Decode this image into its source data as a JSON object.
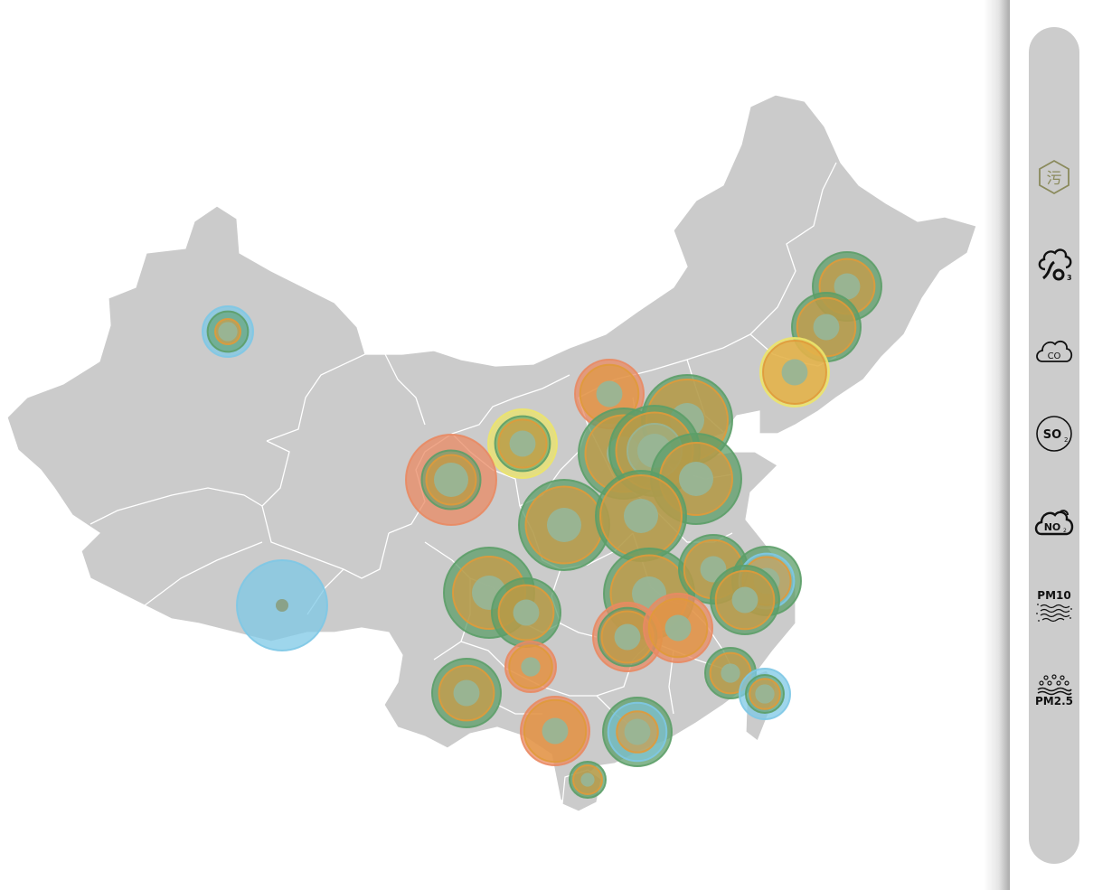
{
  "map": {
    "region": "China",
    "colors": {
      "land": "#cbcbcb",
      "border": "#ffffff",
      "orange": "#e09a3a",
      "green": "#5c9e68",
      "red": "#e98a63",
      "yellow": "#ece46a",
      "blue": "#7ec8e6",
      "center": "#98b596"
    },
    "stations": [
      {
        "id": "urumqi",
        "layers": [
          [
            "blue",
            1
          ],
          [
            "green",
            0.8
          ],
          [
            "orange",
            0.5
          ]
        ],
        "size": "small"
      },
      {
        "id": "lhasa",
        "layers": [
          [
            "blue",
            1
          ]
        ],
        "size": "large"
      },
      {
        "id": "harbin",
        "layers": [
          [
            "green",
            1
          ],
          [
            "orange",
            0.8
          ]
        ],
        "size": "medium"
      },
      {
        "id": "changchun",
        "layers": [
          [
            "green",
            1
          ],
          [
            "orange",
            0.85
          ]
        ],
        "size": "medium"
      },
      {
        "id": "shenyang",
        "layers": [
          [
            "yellow",
            1
          ],
          [
            "orange",
            0.92
          ]
        ],
        "size": "medium"
      },
      {
        "id": "hohhot",
        "layers": [
          [
            "red",
            1
          ],
          [
            "orange",
            0.85
          ]
        ],
        "size": "medium"
      },
      {
        "id": "yinchuan",
        "layers": [
          [
            "yellow",
            1
          ],
          [
            "green",
            0.8
          ],
          [
            "orange",
            0.7
          ]
        ],
        "size": "medium"
      },
      {
        "id": "lanzhou",
        "layers": [
          [
            "red",
            1
          ],
          [
            "green",
            0.65
          ],
          [
            "orange",
            0.55
          ]
        ],
        "size": "large"
      },
      {
        "id": "taiyuan",
        "layers": [
          [
            "green",
            1
          ],
          [
            "orange",
            0.85
          ]
        ],
        "size": "large"
      },
      {
        "id": "beijing",
        "layers": [
          [
            "green",
            1
          ],
          [
            "orange",
            0.9
          ]
        ],
        "size": "large"
      },
      {
        "id": "shijiazhuang",
        "layers": [
          [
            "green",
            1
          ],
          [
            "orange",
            0.85
          ],
          [
            "center",
            0.6
          ]
        ],
        "size": "large"
      },
      {
        "id": "jinan",
        "layers": [
          [
            "green",
            1
          ],
          [
            "orange",
            0.8
          ]
        ],
        "size": "large"
      },
      {
        "id": "xian",
        "layers": [
          [
            "green",
            1
          ],
          [
            "orange",
            0.85
          ]
        ],
        "size": "large"
      },
      {
        "id": "zhengzhou",
        "layers": [
          [
            "green",
            1
          ],
          [
            "orange",
            0.9
          ]
        ],
        "size": "large"
      },
      {
        "id": "chengdu",
        "layers": [
          [
            "green",
            1
          ],
          [
            "orange",
            0.8
          ]
        ],
        "size": "large"
      },
      {
        "id": "chongqing",
        "layers": [
          [
            "green",
            1
          ],
          [
            "orange",
            0.8
          ]
        ],
        "size": "medium"
      },
      {
        "id": "wuhan",
        "layers": [
          [
            "green",
            1
          ],
          [
            "orange",
            0.85
          ]
        ],
        "size": "large"
      },
      {
        "id": "hefei",
        "layers": [
          [
            "green",
            1
          ],
          [
            "orange",
            0.85
          ]
        ],
        "size": "medium"
      },
      {
        "id": "shanghai",
        "layers": [
          [
            "green",
            1
          ],
          [
            "blue",
            0.8
          ],
          [
            "orange",
            0.7
          ]
        ],
        "size": "medium"
      },
      {
        "id": "hangzhou",
        "layers": [
          [
            "green",
            1
          ],
          [
            "orange",
            0.85
          ]
        ],
        "size": "medium"
      },
      {
        "id": "changsha",
        "layers": [
          [
            "red",
            1
          ],
          [
            "green",
            0.85
          ],
          [
            "orange",
            0.75
          ]
        ],
        "size": "medium"
      },
      {
        "id": "nanchang",
        "layers": [
          [
            "red",
            1
          ],
          [
            "orange",
            0.85
          ]
        ],
        "size": "medium"
      },
      {
        "id": "guiyang",
        "layers": [
          [
            "red",
            1
          ],
          [
            "orange",
            0.85
          ]
        ],
        "size": "small"
      },
      {
        "id": "kunming",
        "layers": [
          [
            "green",
            1
          ],
          [
            "orange",
            0.8
          ]
        ],
        "size": "medium"
      },
      {
        "id": "fuzhou",
        "layers": [
          [
            "green",
            1
          ],
          [
            "orange",
            0.8
          ]
        ],
        "size": "small"
      },
      {
        "id": "taipei",
        "layers": [
          [
            "blue",
            1
          ],
          [
            "green",
            0.75
          ],
          [
            "orange",
            0.6
          ]
        ],
        "size": "small"
      },
      {
        "id": "nanning",
        "layers": [
          [
            "red",
            1
          ],
          [
            "orange",
            0.9
          ]
        ],
        "size": "medium"
      },
      {
        "id": "guangzhou",
        "layers": [
          [
            "green",
            1
          ],
          [
            "blue",
            0.85
          ],
          [
            "orange",
            0.6
          ]
        ],
        "size": "medium"
      },
      {
        "id": "haikou",
        "layers": [
          [
            "green",
            1
          ],
          [
            "orange",
            0.8
          ]
        ],
        "size": "tiny"
      }
    ]
  },
  "pollutant_bar": {
    "items": [
      {
        "name": "overall-pollution-icon",
        "label": "污",
        "active": true
      },
      {
        "name": "o3-icon",
        "label": "O3",
        "active": false
      },
      {
        "name": "co-icon",
        "label": "CO",
        "active": false
      },
      {
        "name": "so2-icon",
        "label": "SO2",
        "active": false
      },
      {
        "name": "no2-icon",
        "label": "NO2",
        "active": false
      },
      {
        "name": "pm10-icon",
        "label": "PM10",
        "active": false
      },
      {
        "name": "pm25-icon",
        "label": "PM2.5",
        "active": false
      }
    ],
    "colors": {
      "bar": "#cccccc",
      "active_icon": "#8a8a5c",
      "icon": "#111111"
    }
  }
}
